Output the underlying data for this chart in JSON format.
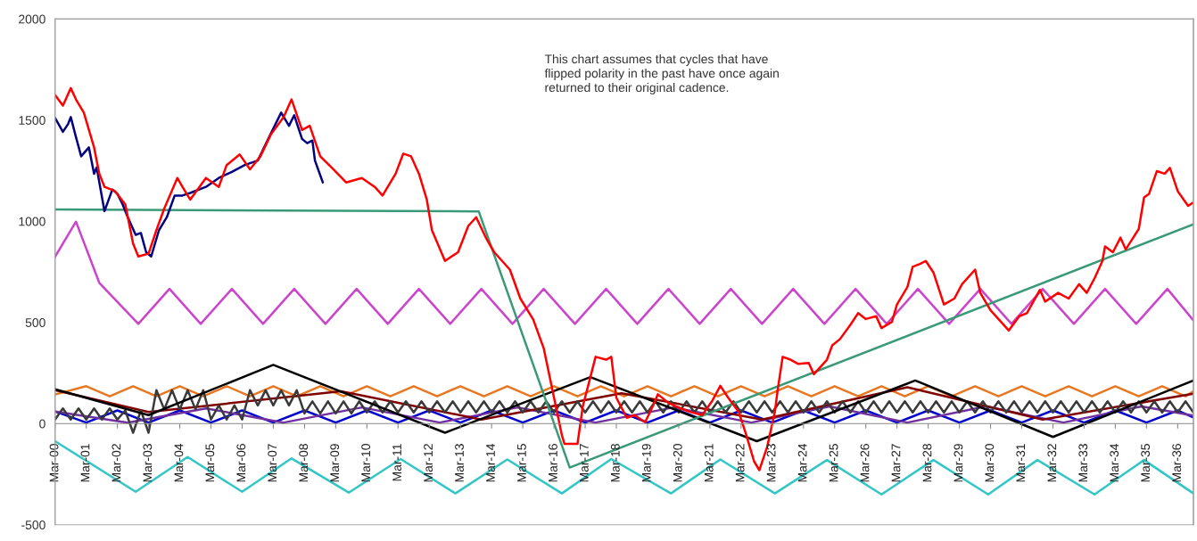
{
  "chart_data": {
    "type": "line",
    "annotations": [
      "This chart assumes that cycles that have\nflipped polarity in the past have once again\nreturned to their original cadence."
    ],
    "xlim": [
      "2000-03",
      "2036-09"
    ],
    "ylim": [
      -500,
      2000
    ],
    "yticks": [
      -500,
      0,
      500,
      1000,
      1500,
      2000
    ],
    "xticks": [
      {
        "value": "2000-03",
        "label": "Mar-00"
      },
      {
        "value": "2001-03",
        "label": "Mar-01"
      },
      {
        "value": "2002-03",
        "label": "Mar-02"
      },
      {
        "value": "2003-03",
        "label": "Mar-03"
      },
      {
        "value": "2004-03",
        "label": "Mar-04"
      },
      {
        "value": "2005-03",
        "label": "Mar-05"
      },
      {
        "value": "2006-03",
        "label": "Mar-06"
      },
      {
        "value": "2007-03",
        "label": "Mar-07"
      },
      {
        "value": "2008-03",
        "label": "Mar-08"
      },
      {
        "value": "2009-03",
        "label": "Mar-09"
      },
      {
        "value": "2010-03",
        "label": "Mar-10"
      },
      {
        "value": "2011-03",
        "label": "Mar-11"
      },
      {
        "value": "2012-03",
        "label": "Mar-12"
      },
      {
        "value": "2013-03",
        "label": "Mar-13"
      },
      {
        "value": "2014-03",
        "label": "Mar-14"
      },
      {
        "value": "2015-03",
        "label": "Mar-15"
      },
      {
        "value": "2016-03",
        "label": "Mar-16"
      },
      {
        "value": "2017-03",
        "label": "Mar-17"
      },
      {
        "value": "2018-03",
        "label": "Mar-18"
      },
      {
        "value": "2019-03",
        "label": "Mar-19"
      },
      {
        "value": "2020-03",
        "label": "Mar-20"
      },
      {
        "value": "2021-03",
        "label": "Mar-21"
      },
      {
        "value": "2022-03",
        "label": "Mar-22"
      },
      {
        "value": "2023-03",
        "label": "Mar-23"
      },
      {
        "value": "2024-03",
        "label": "Mar-24"
      },
      {
        "value": "2025-03",
        "label": "Mar-25"
      },
      {
        "value": "2026-03",
        "label": "Mar-26"
      },
      {
        "value": "2027-03",
        "label": "Mar-27"
      },
      {
        "value": "2028-03",
        "label": "Mar-28"
      },
      {
        "value": "2029-03",
        "label": "Mar-29"
      },
      {
        "value": "2030-03",
        "label": "Mar-30"
      },
      {
        "value": "2031-03",
        "label": "Mar-31"
      },
      {
        "value": "2032-03",
        "label": "Mar-32"
      },
      {
        "value": "2033-03",
        "label": "Mar-33"
      },
      {
        "value": "2034-03",
        "label": "Mar-34"
      },
      {
        "value": "2035-03",
        "label": "Mar-35"
      },
      {
        "value": "2036-03",
        "label": "Mar-36"
      }
    ],
    "series": [
      {
        "color": "#33c6c6",
        "x": [
          "2000-03",
          "2002-10",
          "2004-06",
          "2006-03",
          "2007-10",
          "2009-08",
          "2011-04",
          "2013-01",
          "2014-09",
          "2016-06",
          "2018-01",
          "2019-12",
          "2021-07",
          "2023-04",
          "2024-12",
          "2026-09",
          "2028-05",
          "2030-02",
          "2031-09",
          "2033-07",
          "2035-02",
          "2036-09"
        ],
        "values": [
          -87,
          -337,
          -165,
          -337,
          -172,
          -341,
          -175,
          -345,
          -177,
          -345,
          -175,
          -345,
          -177,
          -345,
          -180,
          -350,
          -180,
          -350,
          -180,
          -350,
          -180,
          -345
        ]
      },
      {
        "color": "#e87722",
        "x": [
          "2000-03",
          "2001-03",
          "2001-12",
          "2002-09",
          "2003-06",
          "2004-03",
          "2004-12",
          "2005-09",
          "2006-06",
          "2007-03",
          "2007-12",
          "2008-09",
          "2009-06",
          "2010-03",
          "2010-12",
          "2011-09",
          "2012-06",
          "2013-03",
          "2013-12",
          "2014-09",
          "2015-06",
          "2016-03",
          "2016-12",
          "2017-09",
          "2018-06",
          "2019-03",
          "2019-12",
          "2020-09",
          "2021-06",
          "2022-03",
          "2022-12",
          "2023-09",
          "2024-06",
          "2025-03",
          "2025-12",
          "2026-09",
          "2027-06",
          "2028-03",
          "2028-12",
          "2029-09",
          "2030-06",
          "2031-03",
          "2031-12",
          "2032-09",
          "2033-06",
          "2034-03",
          "2034-12",
          "2035-09",
          "2036-06",
          "2036-09"
        ],
        "values": [
          144,
          185,
          135,
          185,
          135,
          185,
          135,
          185,
          135,
          185,
          135,
          185,
          135,
          185,
          135,
          185,
          135,
          185,
          135,
          185,
          135,
          185,
          135,
          185,
          135,
          185,
          135,
          185,
          135,
          185,
          135,
          185,
          135,
          185,
          135,
          185,
          135,
          185,
          135,
          185,
          135,
          185,
          135,
          185,
          135,
          185,
          135,
          185,
          135,
          160
        ]
      },
      {
        "color": "#0000cc",
        "x": [
          "2000-03",
          "2001-03",
          "2002-03",
          "2003-03",
          "2004-03",
          "2005-03",
          "2006-03",
          "2007-03",
          "2008-03",
          "2009-03",
          "2010-03",
          "2011-03",
          "2012-03",
          "2013-03",
          "2014-03",
          "2015-03",
          "2016-03",
          "2017-03",
          "2018-03",
          "2019-03",
          "2020-03",
          "2021-03",
          "2022-03",
          "2023-03",
          "2024-03",
          "2025-03",
          "2026-03",
          "2027-03",
          "2028-03",
          "2029-03",
          "2030-03",
          "2031-03",
          "2032-03",
          "2033-03",
          "2034-03",
          "2035-03",
          "2036-03",
          "2036-09"
        ],
        "values": [
          60,
          5,
          65,
          5,
          65,
          5,
          65,
          5,
          65,
          5,
          65,
          5,
          65,
          5,
          65,
          5,
          65,
          5,
          65,
          5,
          65,
          5,
          65,
          5,
          65,
          5,
          65,
          5,
          65,
          5,
          65,
          5,
          65,
          5,
          65,
          5,
          65,
          30
        ]
      },
      {
        "color": "#7030a0",
        "x": [
          "2000-03",
          "2002-07",
          "2005-01",
          "2007-07",
          "2010-01",
          "2012-07",
          "2015-01",
          "2017-07",
          "2020-01",
          "2022-07",
          "2025-01",
          "2027-07",
          "2030-01",
          "2032-07",
          "2035-01",
          "2036-09"
        ],
        "values": [
          60,
          5,
          75,
          5,
          80,
          5,
          80,
          5,
          80,
          5,
          85,
          5,
          85,
          5,
          85,
          40
        ]
      },
      {
        "color": "#800000",
        "x": [
          "2000-03",
          "2003-03",
          "2009-05",
          "2013-11",
          "2018-05",
          "2022-11",
          "2027-07",
          "2031-11",
          "2036-09"
        ],
        "values": [
          165,
          57,
          160,
          20,
          150,
          20,
          180,
          20,
          148
        ]
      },
      {
        "color": "#3a3a3a",
        "x": [
          "2000-03",
          "2000-06",
          "2000-09",
          "2000-12",
          "2001-03",
          "2001-06",
          "2001-09",
          "2001-12",
          "2002-03",
          "2002-06",
          "2002-09",
          "2002-12",
          "2003-03",
          "2003-06",
          "2003-09",
          "2003-12",
          "2004-03",
          "2004-06",
          "2004-09",
          "2004-12",
          "2005-03",
          "2005-06",
          "2005-09",
          "2005-12",
          "2006-03",
          "2006-06",
          "2006-09",
          "2006-12",
          "2007-03",
          "2007-06",
          "2007-09",
          "2007-12",
          "2008-03",
          "2008-06",
          "2008-09",
          "2008-12",
          "2009-03",
          "2009-06",
          "2009-09",
          "2009-12",
          "2010-03",
          "2010-06",
          "2010-09",
          "2010-12",
          "2011-03",
          "2011-06",
          "2011-09",
          "2011-12",
          "2012-03",
          "2012-06",
          "2012-09",
          "2012-12",
          "2013-03",
          "2013-06",
          "2013-09",
          "2013-12",
          "2014-03",
          "2014-06",
          "2014-09",
          "2014-12",
          "2015-03",
          "2015-06",
          "2015-09",
          "2015-12",
          "2016-03",
          "2016-06",
          "2016-09",
          "2016-12",
          "2017-03",
          "2017-06",
          "2017-09",
          "2017-12",
          "2018-03",
          "2018-06",
          "2018-09",
          "2018-12",
          "2019-03",
          "2019-06",
          "2019-09",
          "2019-12",
          "2020-03",
          "2020-06",
          "2020-09",
          "2020-12",
          "2021-03",
          "2021-06",
          "2021-09",
          "2021-12",
          "2022-03",
          "2022-06",
          "2022-09",
          "2022-12",
          "2023-03",
          "2023-06",
          "2023-09",
          "2023-12",
          "2024-03",
          "2024-06",
          "2024-09",
          "2024-12",
          "2025-03",
          "2025-06",
          "2025-09",
          "2025-12",
          "2026-03",
          "2026-06",
          "2026-09",
          "2026-12",
          "2027-03",
          "2027-06",
          "2027-09",
          "2027-12",
          "2028-03",
          "2028-06",
          "2028-09",
          "2028-12",
          "2029-03",
          "2029-06",
          "2029-09",
          "2029-12",
          "2030-03",
          "2030-06",
          "2030-09",
          "2030-12",
          "2031-03",
          "2031-06",
          "2031-09",
          "2031-12",
          "2032-03",
          "2032-06",
          "2032-09",
          "2032-12",
          "2033-03",
          "2033-06",
          "2033-09",
          "2033-12",
          "2034-03",
          "2034-06",
          "2034-09",
          "2034-12",
          "2035-03",
          "2035-06",
          "2035-09",
          "2035-12",
          "2036-03",
          "2036-06",
          "2036-09"
        ],
        "values": [
          20,
          75,
          20,
          75,
          20,
          75,
          20,
          75,
          20,
          65,
          -45,
          65,
          -45,
          165,
          70,
          165,
          70,
          165,
          70,
          165,
          20,
          90,
          20,
          90,
          20,
          165,
          90,
          165,
          90,
          165,
          90,
          165,
          50,
          110,
          50,
          110,
          50,
          110,
          50,
          110,
          55,
          110,
          55,
          110,
          55,
          110,
          55,
          110,
          55,
          110,
          55,
          110,
          55,
          110,
          55,
          110,
          55,
          110,
          55,
          110,
          55,
          110,
          55,
          110,
          55,
          110,
          55,
          110,
          55,
          110,
          55,
          110,
          55,
          110,
          55,
          110,
          55,
          110,
          55,
          110,
          55,
          110,
          55,
          110,
          55,
          110,
          55,
          110,
          55,
          110,
          55,
          110,
          55,
          110,
          55,
          110,
          55,
          110,
          55,
          110,
          55,
          110,
          55,
          110,
          55,
          110,
          55,
          110,
          55,
          110,
          55,
          110,
          55,
          110,
          55,
          110,
          55,
          110,
          55,
          110,
          55,
          110,
          55,
          110,
          55,
          110,
          55,
          110,
          55,
          110,
          55,
          110,
          55,
          110,
          55,
          110,
          55,
          110,
          55,
          110,
          55,
          110,
          55,
          110,
          55,
          110,
          55
        ]
      },
      {
        "color": "#000000",
        "x": [
          "2000-03",
          "2003-03",
          "2007-03",
          "2012-09",
          "2017-05",
          "2022-09",
          "2027-10",
          "2032-03",
          "2036-09"
        ],
        "values": [
          170,
          42,
          290,
          -45,
          230,
          -87,
          213,
          -66,
          213
        ]
      },
      {
        "color": "#cc44cc",
        "x": [
          "2000-03",
          "2000-11",
          "2001-08",
          "2002-11",
          "2003-11",
          "2004-11",
          "2005-11",
          "2006-11",
          "2007-11",
          "2008-11",
          "2009-11",
          "2010-11",
          "2011-11",
          "2012-11",
          "2013-11",
          "2014-11",
          "2015-11",
          "2016-11",
          "2017-11",
          "2018-11",
          "2019-11",
          "2020-11",
          "2021-11",
          "2022-11",
          "2023-11",
          "2024-11",
          "2025-11",
          "2026-11",
          "2027-11",
          "2028-11",
          "2029-11",
          "2030-11",
          "2031-11",
          "2032-11",
          "2033-11",
          "2034-11",
          "2035-11",
          "2036-09"
        ],
        "values": [
          825,
          998,
          696,
          493,
          666,
          493,
          666,
          493,
          666,
          493,
          666,
          493,
          666,
          493,
          666,
          493,
          666,
          493,
          666,
          493,
          666,
          493,
          666,
          493,
          666,
          493,
          666,
          493,
          666,
          493,
          666,
          493,
          666,
          493,
          666,
          493,
          666,
          510
        ]
      },
      {
        "color": "#3a9a78",
        "x": [
          "2000-03",
          "2013-10",
          "2016-09",
          "2036-09"
        ],
        "values": [
          1058,
          1049,
          -217,
          985
        ]
      },
      {
        "color": "#000080",
        "x": [
          "2000-03",
          "2000-06",
          "2000-08",
          "2000-09",
          "2000-11",
          "2001-01",
          "2001-04",
          "2001-06",
          "2001-07",
          "2001-10",
          "2002-01",
          "2002-03",
          "2002-05",
          "2002-07",
          "2002-10",
          "2002-12",
          "2003-02",
          "2003-04",
          "2003-07",
          "2003-10",
          "2004-01",
          "2004-04",
          "2004-07",
          "2005-01",
          "2005-06",
          "2005-11",
          "2006-04",
          "2006-09",
          "2007-01",
          "2007-06",
          "2007-09",
          "2007-11",
          "2008-02",
          "2008-04",
          "2008-06",
          "2008-07",
          "2008-10"
        ],
        "values": [
          1511,
          1442,
          1481,
          1515,
          1416,
          1321,
          1365,
          1235,
          1266,
          1050,
          1157,
          1136,
          1084,
          1020,
          933,
          942,
          847,
          826,
          956,
          1020,
          1127,
          1127,
          1140,
          1170,
          1214,
          1244,
          1278,
          1300,
          1407,
          1537,
          1472,
          1524,
          1407,
          1386,
          1399,
          1300,
          1192
        ]
      },
      {
        "color": "#ff0000",
        "x": [
          "2000-03",
          "2000-06",
          "2000-09",
          "2000-11",
          "2001-02",
          "2001-06",
          "2001-08",
          "2001-10",
          "2002-02",
          "2002-06",
          "2002-09",
          "2002-11",
          "2003-03",
          "2003-06",
          "2003-09",
          "2004-02",
          "2004-04",
          "2004-07",
          "2005-01",
          "2005-06",
          "2005-09",
          "2006-02",
          "2006-06",
          "2006-10",
          "2007-02",
          "2007-07",
          "2007-10",
          "2008-02",
          "2008-05",
          "2008-09",
          "2009-02",
          "2009-07",
          "2010-01",
          "2010-06",
          "2010-09",
          "2011-02",
          "2011-05",
          "2011-08",
          "2011-11",
          "2012-02",
          "2012-04",
          "2012-09",
          "2013-02",
          "2013-06",
          "2013-09",
          "2014-01",
          "2014-04",
          "2014-10",
          "2015-02",
          "2015-07",
          "2015-11",
          "2016-02",
          "2016-06",
          "2016-07",
          "2016-12",
          "2017-02",
          "2017-05",
          "2017-07",
          "2017-11",
          "2018-01",
          "2018-03",
          "2018-07",
          "2018-10",
          "2019-02",
          "2019-05",
          "2019-07",
          "2019-11",
          "2020-02",
          "2020-07",
          "2020-12",
          "2021-04",
          "2021-07",
          "2021-10",
          "2022-02",
          "2022-05",
          "2022-08",
          "2022-10",
          "2023-01",
          "2023-04",
          "2023-05",
          "2023-07",
          "2023-10",
          "2024-01",
          "2024-05",
          "2024-07",
          "2024-12",
          "2025-02",
          "2025-05",
          "2025-09",
          "2025-12",
          "2026-03",
          "2026-07",
          "2026-09",
          "2027-01",
          "2027-03",
          "2027-07",
          "2027-09",
          "2027-12",
          "2028-02",
          "2028-05",
          "2028-09",
          "2029-01",
          "2029-04",
          "2029-09",
          "2029-11",
          "2030-03",
          "2030-06",
          "2030-10",
          "2031-02",
          "2031-05",
          "2031-10",
          "2031-12",
          "2032-05",
          "2032-09",
          "2033-01",
          "2033-04",
          "2033-07",
          "2033-09",
          "2033-10",
          "2033-11",
          "2034-02",
          "2034-05",
          "2034-07",
          "2034-12",
          "2035-02",
          "2035-04",
          "2035-07",
          "2035-10",
          "2035-12",
          "2036-03",
          "2036-07",
          "2036-09"
        ],
        "values": [
          1624,
          1572,
          1658,
          1602,
          1537,
          1365,
          1235,
          1170,
          1149,
          1084,
          890,
          826,
          840,
          956,
          1063,
          1214,
          1170,
          1107,
          1214,
          1170,
          1278,
          1330,
          1257,
          1321,
          1429,
          1515,
          1602,
          1451,
          1472,
          1321,
          1257,
          1192,
          1214,
          1170,
          1127,
          1235,
          1334,
          1321,
          1235,
          1107,
          956,
          804,
          847,
          977,
          1020,
          912,
          847,
          761,
          618,
          515,
          373,
          187,
          -57,
          -100,
          -100,
          85,
          230,
          330,
          316,
          330,
          128,
          29,
          42,
          7,
          85,
          145,
          102,
          85,
          59,
          42,
          115,
          187,
          128,
          59,
          -57,
          -187,
          -230,
          -115,
          59,
          158,
          330,
          316,
          295,
          300,
          244,
          316,
          387,
          417,
          488,
          546,
          517,
          531,
          472,
          503,
          589,
          675,
          775,
          790,
          804,
          747,
          589,
          618,
          689,
          761,
          646,
          560,
          517,
          460,
          531,
          546,
          661,
          603,
          646,
          618,
          689,
          646,
          718,
          775,
          804,
          876,
          847,
          919,
          861,
          962,
          1118,
          1136,
          1248,
          1235,
          1264,
          1149,
          1076,
          1093
        ]
      }
    ]
  }
}
